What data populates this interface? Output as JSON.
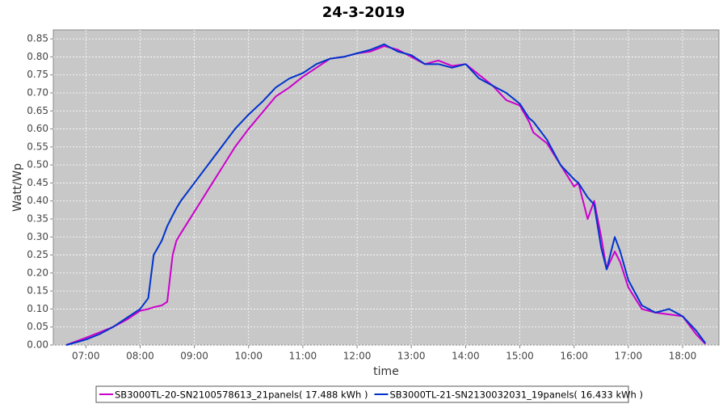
{
  "chart_data": {
    "type": "line",
    "title": "24-3-2019",
    "x_label": "time",
    "y_label": "Watt/Wp",
    "x": [
      6.64,
      7,
      7.25,
      7.5,
      7.75,
      8,
      8.15,
      8.25,
      8.4,
      8.5,
      8.6,
      8.67,
      8.75,
      9,
      9.25,
      9.5,
      9.75,
      10,
      10.25,
      10.5,
      10.75,
      11,
      11.25,
      11.5,
      11.75,
      12,
      12.25,
      12.5,
      12.75,
      13,
      13.25,
      13.5,
      13.75,
      14,
      14.25,
      14.5,
      14.75,
      15,
      15.17,
      15.25,
      15.5,
      15.75,
      16,
      16.08,
      16.25,
      16.37,
      16.5,
      16.6,
      16.75,
      16.85,
      17,
      17.25,
      17.5,
      17.75,
      18,
      18.25,
      18.42
    ],
    "series": [
      {
        "name": "SB3000TL-20-SN2100578613_21panels( 17.488 kWh )",
        "color": "#cc00cc",
        "values": [
          0,
          0.02,
          0.035,
          0.05,
          0.07,
          0.095,
          0.1,
          0.105,
          0.11,
          0.12,
          0.25,
          0.29,
          0.31,
          0.37,
          0.43,
          0.49,
          0.55,
          0.6,
          0.645,
          0.69,
          0.715,
          0.745,
          0.77,
          0.795,
          0.8,
          0.81,
          0.815,
          0.83,
          0.82,
          0.8,
          0.78,
          0.79,
          0.775,
          0.78,
          0.75,
          0.72,
          0.68,
          0.665,
          0.62,
          0.59,
          0.56,
          0.5,
          0.44,
          0.45,
          0.35,
          0.4,
          0.3,
          0.21,
          0.26,
          0.23,
          0.16,
          0.1,
          0.09,
          0.085,
          0.08,
          0.03,
          0.003
        ]
      },
      {
        "name": "SB3000TL-21-SN2130032031_19panels( 16.433 kWh )",
        "color": "#0033cc",
        "values": [
          0,
          0.015,
          0.03,
          0.05,
          0.075,
          0.1,
          0.13,
          0.25,
          0.29,
          0.33,
          0.36,
          0.38,
          0.4,
          0.45,
          0.5,
          0.55,
          0.6,
          0.64,
          0.675,
          0.715,
          0.74,
          0.755,
          0.78,
          0.795,
          0.8,
          0.81,
          0.82,
          0.835,
          0.815,
          0.805,
          0.78,
          0.78,
          0.77,
          0.78,
          0.74,
          0.72,
          0.7,
          0.67,
          0.63,
          0.62,
          0.57,
          0.5,
          0.46,
          0.45,
          0.41,
          0.39,
          0.27,
          0.21,
          0.3,
          0.26,
          0.18,
          0.11,
          0.09,
          0.1,
          0.08,
          0.04,
          0.005
        ]
      }
    ],
    "xlim": [
      6.4,
      18.67
    ],
    "xticks": [
      {
        "value": 7,
        "label": "07:00"
      },
      {
        "value": 8,
        "label": "08:00"
      },
      {
        "value": 9,
        "label": "09:00"
      },
      {
        "value": 10,
        "label": "10:00"
      },
      {
        "value": 11,
        "label": "11:00"
      },
      {
        "value": 12,
        "label": "12:00"
      },
      {
        "value": 13,
        "label": "13:00"
      },
      {
        "value": 14,
        "label": "14:00"
      },
      {
        "value": 15,
        "label": "15:00"
      },
      {
        "value": 16,
        "label": "16:00"
      },
      {
        "value": 17,
        "label": "17:00"
      },
      {
        "value": 18,
        "label": "18:00"
      }
    ],
    "ylim": [
      0,
      0.875
    ],
    "yticks": [
      {
        "value": 0,
        "label": "0.00"
      },
      {
        "value": 0.05,
        "label": "0.05"
      },
      {
        "value": 0.1,
        "label": "0.10"
      },
      {
        "value": 0.15,
        "label": "0.15"
      },
      {
        "value": 0.2,
        "label": "0.20"
      },
      {
        "value": 0.25,
        "label": "0.25"
      },
      {
        "value": 0.3,
        "label": "0.30"
      },
      {
        "value": 0.35,
        "label": "0.35"
      },
      {
        "value": 0.4,
        "label": "0.40"
      },
      {
        "value": 0.45,
        "label": "0.45"
      },
      {
        "value": 0.5,
        "label": "0.50"
      },
      {
        "value": 0.55,
        "label": "0.55"
      },
      {
        "value": 0.6,
        "label": "0.60"
      },
      {
        "value": 0.65,
        "label": "0.65"
      },
      {
        "value": 0.7,
        "label": "0.70"
      },
      {
        "value": 0.75,
        "label": "0.75"
      },
      {
        "value": 0.8,
        "label": "0.80"
      },
      {
        "value": 0.85,
        "label": "0.85"
      }
    ],
    "grid": true
  }
}
